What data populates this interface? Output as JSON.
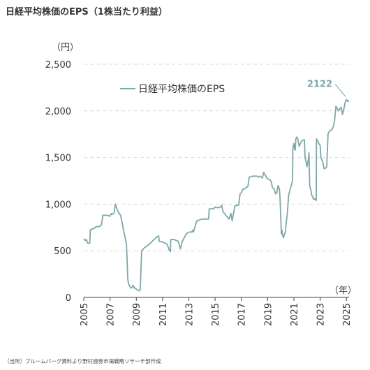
{
  "title": "日経平均株価のEPS（1株当たり利益）",
  "source": "（出所）ブルームバーグ資料より野村證券市場戦略リサーチ部作成",
  "chart_data": {
    "type": "line",
    "title": "日経平均株価のEPS（1株当たり利益）",
    "y_unit": "（円）",
    "x_unit": "（年）",
    "ylim": [
      0,
      2500
    ],
    "xlim": [
      2005,
      2025.2
    ],
    "y_ticks": [
      0,
      500,
      1000,
      1500,
      2000,
      2500
    ],
    "y_tick_labels": [
      "0",
      "500",
      "1,000",
      "1,500",
      "2,000",
      "2,500"
    ],
    "x_ticks": [
      "2005",
      "2007",
      "2009",
      "2011",
      "2013",
      "2015",
      "2017",
      "2019",
      "2021",
      "2023",
      "2025"
    ],
    "grid": true,
    "legend_position": "top-center",
    "colors": {
      "line": "#7fa7a8",
      "annotation": "#7fa7a8",
      "grid": "#d9d9d9",
      "axis": "#444444"
    },
    "series": [
      {
        "name": "日経平均株価のEPS",
        "x": [
          2005.0,
          2005.1,
          2005.2,
          2005.3,
          2005.45,
          2005.5,
          2005.55,
          2005.8,
          2005.95,
          2006.1,
          2006.2,
          2006.35,
          2006.45,
          2006.6,
          2006.8,
          2007.0,
          2007.1,
          2007.15,
          2007.3,
          2007.4,
          2007.5,
          2007.6,
          2007.7,
          2007.8,
          2007.95,
          2008.05,
          2008.15,
          2008.25,
          2008.3,
          2008.35,
          2008.4,
          2008.5,
          2008.6,
          2008.7,
          2008.75,
          2008.8,
          2008.85,
          2008.9,
          2009.0,
          2009.1,
          2009.2,
          2009.3,
          2009.4,
          2009.42,
          2009.6,
          2009.8,
          2010.0,
          2010.2,
          2010.5,
          2010.7,
          2010.75,
          2010.9,
          2011.2,
          2011.35,
          2011.5,
          2011.6,
          2011.62,
          2011.9,
          2012.2,
          2012.35,
          2012.5,
          2012.8,
          2013.0,
          2013.2,
          2013.3,
          2013.35,
          2013.6,
          2014.0,
          2014.3,
          2014.5,
          2014.55,
          2014.9,
          2015.0,
          2015.2,
          2015.45,
          2015.5,
          2015.6,
          2015.8,
          2015.95,
          2016.05,
          2016.2,
          2016.3,
          2016.5,
          2016.8,
          2016.9,
          2017.0,
          2017.1,
          2017.2,
          2017.5,
          2017.6,
          2017.9,
          2018.2,
          2018.3,
          2018.4,
          2018.6,
          2018.7,
          2018.9,
          2019.0,
          2019.2,
          2019.3,
          2019.35,
          2019.5,
          2019.6,
          2019.7,
          2019.8,
          2019.9,
          2019.95,
          2020.0,
          2020.05,
          2020.1,
          2020.15,
          2020.2,
          2020.3,
          2020.35,
          2020.4,
          2020.5,
          2020.6,
          2020.7,
          2020.8,
          2020.9,
          2020.92,
          2021.0,
          2021.05,
          2021.1,
          2021.15,
          2021.2,
          2021.3,
          2021.4,
          2021.5,
          2021.6,
          2021.8,
          2021.85,
          2022.0,
          2022.1,
          2022.15,
          2022.2,
          2022.3,
          2022.35,
          2022.5,
          2022.55,
          2022.7,
          2022.72,
          2022.8,
          2022.9,
          2023.0,
          2023.05,
          2023.2,
          2023.3,
          2023.35,
          2023.5,
          2023.6,
          2023.62,
          2023.7,
          2023.9,
          2024.0,
          2024.1,
          2024.2,
          2024.4,
          2024.6,
          2024.7,
          2024.8,
          2024.9,
          2025.0,
          2025.1,
          2025.2
        ],
        "values": [
          630,
          610,
          620,
          580,
          580,
          710,
          730,
          740,
          760,
          760,
          760,
          780,
          880,
          880,
          880,
          870,
          900,
          890,
          900,
          1000,
          960,
          920,
          900,
          880,
          780,
          700,
          640,
          580,
          400,
          200,
          150,
          120,
          100,
          110,
          130,
          120,
          100,
          100,
          90,
          80,
          70,
          80,
          480,
          500,
          530,
          550,
          570,
          600,
          640,
          660,
          600,
          600,
          580,
          570,
          510,
          490,
          620,
          620,
          600,
          520,
          600,
          680,
          700,
          700,
          720,
          700,
          820,
          840,
          840,
          840,
          950,
          950,
          970,
          960,
          970,
          990,
          920,
          880,
          860,
          840,
          900,
          820,
          980,
          990,
          1110,
          1120,
          1160,
          1160,
          1190,
          1290,
          1300,
          1300,
          1290,
          1300,
          1280,
          1340,
          1290,
          1270,
          1260,
          1230,
          1180,
          1160,
          1110,
          1120,
          1200,
          1160,
          1050,
          850,
          680,
          720,
          660,
          640,
          680,
          700,
          780,
          900,
          1100,
          1150,
          1200,
          1250,
          1600,
          1650,
          1590,
          1580,
          1700,
          1720,
          1700,
          1620,
          1650,
          1680,
          1690,
          1500,
          1400,
          1480,
          1550,
          1200,
          1150,
          1100,
          1050,
          1060,
          1040,
          1700,
          1680,
          1650,
          1630,
          1500,
          1450,
          1380,
          1380,
          1400,
          1750,
          1760,
          1780,
          1800,
          1830,
          1900,
          2050,
          2000,
          2040,
          1960,
          2020,
          2090,
          2122,
          2100,
          2110
        ]
      }
    ],
    "annotations": [
      {
        "text": "2122",
        "x": 2025.1,
        "y": 2122
      }
    ]
  }
}
